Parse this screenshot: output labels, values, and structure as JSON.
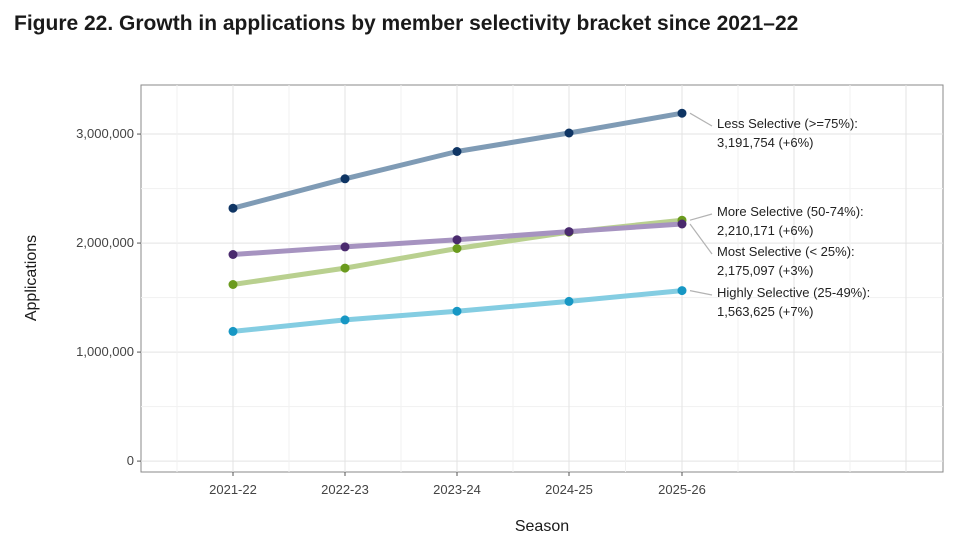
{
  "title": "Figure 22. Growth in applications by member selectivity bracket since 2021–22",
  "chart_data": {
    "type": "line",
    "xlabel": "Season",
    "ylabel": "Applications",
    "categories": [
      "2021-22",
      "2022-23",
      "2023-24",
      "2024-25",
      "2025-26"
    ],
    "ylim": [
      -100000,
      3450000
    ],
    "yticks": [
      0,
      1000000,
      2000000,
      3000000
    ],
    "ytick_labels": [
      "0",
      "1,000,000",
      "2,000,000",
      "3,000,000"
    ],
    "grid": true,
    "series": [
      {
        "name": "Less Selective (>=75%)",
        "values": [
          2320000,
          2590000,
          2840000,
          3010000,
          3191754
        ],
        "line_color": "#7f9bb5",
        "point_color": "#0f3564",
        "label_line1": "Less Selective (>=75%):",
        "label_line2": "3,191,754 (+6%)"
      },
      {
        "name": "More Selective (50-74%)",
        "values": [
          1620000,
          1770000,
          1950000,
          2100000,
          2210171
        ],
        "line_color": "#b9d08f",
        "point_color": "#6b9b1e",
        "label_line1": "More Selective (50-74%):",
        "label_line2": "2,210,171 (+6%)"
      },
      {
        "name": "Most Selective (< 25%)",
        "values": [
          1895000,
          1965000,
          2030000,
          2105000,
          2175097
        ],
        "line_color": "#a693c0",
        "point_color": "#4a2a6e",
        "label_line1": "Most Selective (< 25%):",
        "label_line2": "2,175,097 (+3%)"
      },
      {
        "name": "Highly Selective (25-49%)",
        "values": [
          1190000,
          1295000,
          1375000,
          1465000,
          1563625
        ],
        "line_color": "#84cde2",
        "point_color": "#1797c4",
        "label_line1": "Highly Selective (25-49%):",
        "label_line2": "1,563,625 (+7%)"
      }
    ]
  }
}
